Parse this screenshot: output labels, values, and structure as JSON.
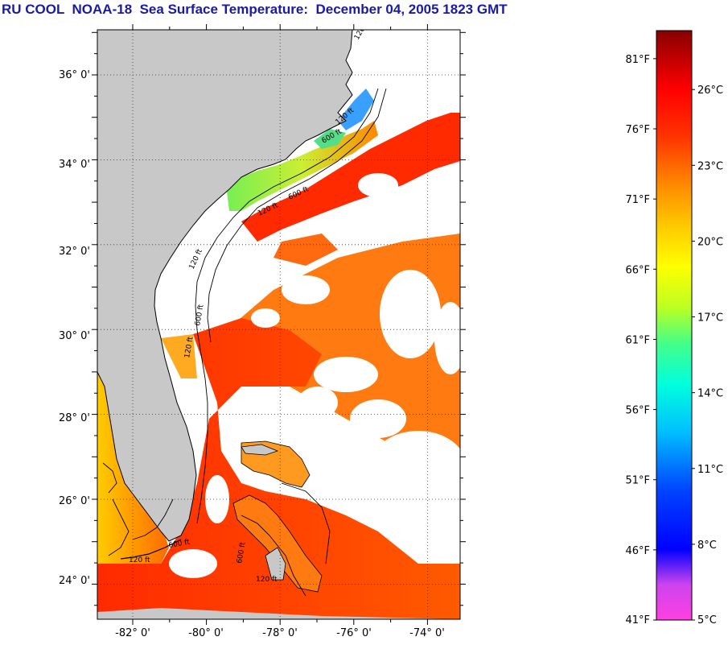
{
  "title": "RU COOL  NOAA-18  Sea Surface Temperature:  December 04, 2005 1823 GMT",
  "lat_ticks": [
    {
      "lat": 36,
      "label": "36° 0'"
    },
    {
      "lat": 34,
      "label": "34° 0'"
    },
    {
      "lat": 32,
      "label": "32° 0'"
    },
    {
      "lat": 30,
      "label": "30° 0'"
    },
    {
      "lat": 28,
      "label": "28° 0'"
    },
    {
      "lat": 26,
      "label": "26° 0'"
    },
    {
      "lat": 24,
      "label": "24° 0'"
    }
  ],
  "lon_ticks": [
    {
      "lon": -82,
      "label": "-82° 0'"
    },
    {
      "lon": -80,
      "label": "-80° 0'"
    },
    {
      "lon": -78,
      "label": "-78° 0'"
    },
    {
      "lon": -76,
      "label": "-76° 0'"
    },
    {
      "lon": -74,
      "label": "-74° 0'"
    }
  ],
  "contour_labels": [
    "120 ft",
    "600 ft",
    "120 ft",
    "600 ft",
    "120 ft",
    "600 ft",
    "120 ft",
    "600 ft",
    "120 ft",
    "120 ft",
    "600 ft",
    "120 ft"
  ],
  "colorbar": {
    "fahrenheit": [
      {
        "f": 81,
        "label": "81°F"
      },
      {
        "f": 76,
        "label": "76°F"
      },
      {
        "f": 71,
        "label": "71°F"
      },
      {
        "f": 66,
        "label": "66°F"
      },
      {
        "f": 61,
        "label": "61°F"
      },
      {
        "f": 56,
        "label": "56°F"
      },
      {
        "f": 51,
        "label": "51°F"
      },
      {
        "f": 46,
        "label": "46°F"
      },
      {
        "f": 41,
        "label": "41°F"
      }
    ],
    "celsius": [
      {
        "c": 26,
        "label": "26°C"
      },
      {
        "c": 23,
        "label": "23°C"
      },
      {
        "c": 20,
        "label": "20°C"
      },
      {
        "c": 17,
        "label": "17°C"
      },
      {
        "c": 14,
        "label": "14°C"
      },
      {
        "c": 11,
        "label": "11°C"
      },
      {
        "c": 8,
        "label": "8°C"
      },
      {
        "c": 5,
        "label": "5°C"
      }
    ]
  },
  "colors": {
    "land": "#c8c8c8",
    "cloud": "#ffffff",
    "title": "#1a1aa6"
  }
}
